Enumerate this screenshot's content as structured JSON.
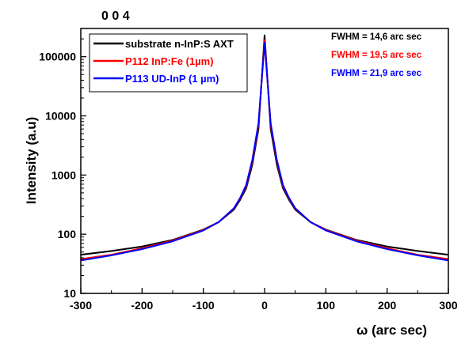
{
  "chart_data": {
    "type": "line",
    "title": "0 0 4",
    "xlabel": "ω (arc sec)",
    "ylabel": "Intensity (a.u)",
    "xlim": [
      -300,
      300
    ],
    "ylim": [
      10,
      300000
    ],
    "yscale": "log",
    "x_ticks": [
      -300,
      -200,
      -100,
      0,
      100,
      200,
      300
    ],
    "x_tick_labels": [
      "-300",
      "-200",
      "-100",
      "0",
      "100",
      "200",
      "300"
    ],
    "y_ticks": [
      10,
      100,
      1000,
      10000,
      100000
    ],
    "y_tick_labels": [
      "10",
      "100",
      "1000",
      "10000",
      "100000"
    ],
    "legend_position": "top-left",
    "series": [
      {
        "name": "substrate n-InP:S AXT",
        "color": "#000000",
        "x": [
          -300,
          -250,
          -200,
          -150,
          -100,
          -75,
          -50,
          -40,
          -30,
          -20,
          -10,
          0,
          10,
          20,
          30,
          40,
          50,
          75,
          100,
          150,
          200,
          250,
          300
        ],
        "y": [
          45,
          52,
          62,
          80,
          120,
          160,
          260,
          380,
          600,
          1500,
          6000,
          230000,
          6000,
          1500,
          600,
          380,
          260,
          160,
          120,
          80,
          62,
          52,
          45
        ]
      },
      {
        "name": "P112 InP:Fe  (1µm)",
        "color": "#ff0000",
        "x": [
          -300,
          -250,
          -200,
          -150,
          -100,
          -75,
          -50,
          -40,
          -30,
          -20,
          -10,
          0,
          10,
          20,
          30,
          40,
          50,
          75,
          100,
          150,
          200,
          250,
          300
        ],
        "y": [
          38,
          45,
          58,
          78,
          118,
          160,
          270,
          400,
          650,
          1700,
          7000,
          190000,
          7000,
          1700,
          650,
          400,
          270,
          160,
          118,
          78,
          58,
          45,
          38
        ]
      },
      {
        "name": "P113 UD-InP  (1 µm)",
        "color": "#0000ff",
        "x": [
          -300,
          -250,
          -200,
          -150,
          -100,
          -75,
          -50,
          -40,
          -30,
          -20,
          -10,
          0,
          10,
          20,
          30,
          40,
          50,
          75,
          100,
          150,
          200,
          250,
          300
        ],
        "y": [
          36,
          44,
          56,
          76,
          116,
          160,
          275,
          410,
          680,
          1800,
          7500,
          175000,
          7500,
          1800,
          680,
          410,
          275,
          160,
          116,
          76,
          56,
          44,
          36
        ]
      }
    ],
    "annotations": [
      {
        "text": "FWHM = 14,6 arc sec",
        "color": "#000000"
      },
      {
        "text": "FWHM = 19,5 arc sec",
        "color": "#ff0000"
      },
      {
        "text": "FWHM = 21,9 arc sec",
        "color": "#0000ff"
      }
    ]
  }
}
